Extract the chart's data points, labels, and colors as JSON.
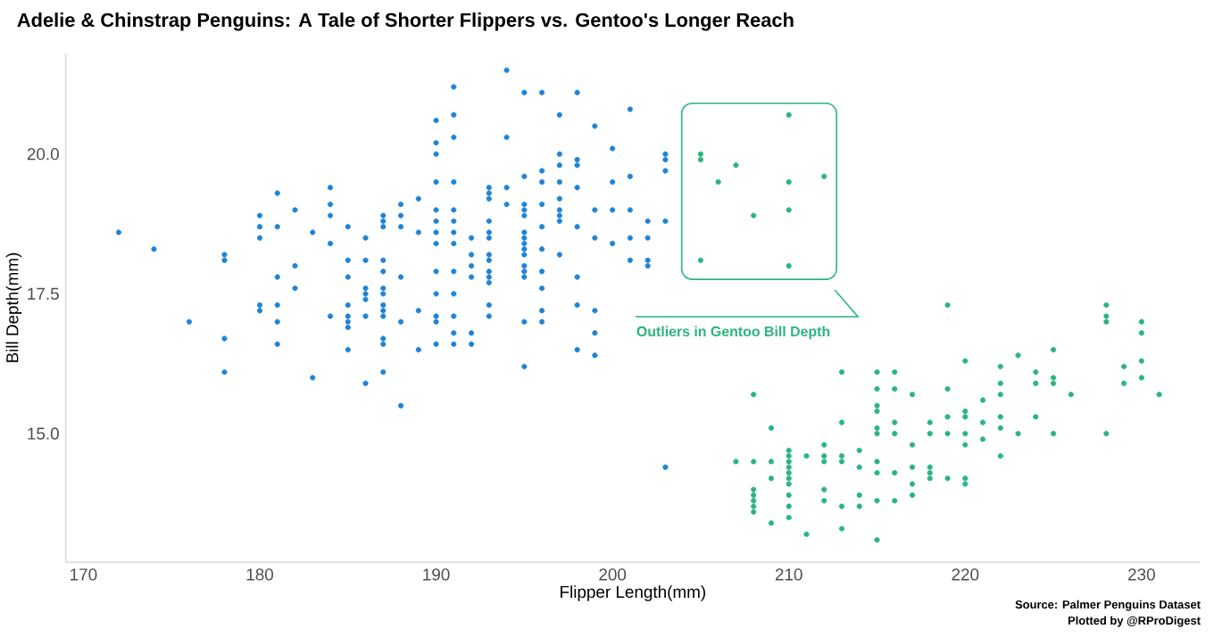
{
  "chart_data": {
    "type": "scatter",
    "title": "Adelie & Chinstrap Penguins: A Tale of Shorter Flippers vs. Gentoo's Longer Reach",
    "xlabel": "Flipper Length(mm)",
    "ylabel": "Bill Depth(mm)",
    "xlim": [
      169,
      233.3
    ],
    "ylim": [
      12.7,
      21.8
    ],
    "xticks": [
      170,
      180,
      190,
      200,
      210,
      220,
      230
    ],
    "yticks": [
      {
        "value": 15,
        "label": "15.0"
      },
      {
        "value": 17.5,
        "label": "17.5"
      },
      {
        "value": 20,
        "label": "20.0"
      }
    ],
    "marker": "circle",
    "annotations": [
      "Outliers in Gentoo Bill Depth",
      "Source: Palmer Penguins Dataset",
      "Plotted by @RProDigest"
    ],
    "series": [
      {
        "color": "#1f83d6",
        "x": [
          172,
          174,
          176,
          178,
          178,
          178,
          178,
          180,
          180,
          180,
          180,
          180,
          181,
          181,
          181,
          181,
          181,
          181,
          182,
          182,
          182,
          183,
          183,
          184,
          184,
          184,
          184,
          184,
          185,
          185,
          185,
          185,
          185,
          185,
          185,
          185,
          186,
          186,
          186,
          186,
          186,
          186,
          186,
          187,
          187,
          187,
          187,
          187,
          187,
          187,
          187,
          187,
          187,
          187,
          187,
          187,
          188,
          188,
          188,
          188,
          188,
          188,
          189,
          189,
          189,
          189,
          190,
          190,
          190,
          190,
          190,
          190,
          190,
          190,
          190,
          190,
          190,
          190,
          190,
          191,
          191,
          191,
          191,
          191,
          191,
          191,
          191,
          191,
          191,
          191,
          191,
          191,
          192,
          192,
          192,
          192,
          192,
          192,
          193,
          193,
          193,
          193,
          193,
          193,
          193,
          193,
          193,
          193,
          193,
          193,
          193,
          194,
          194,
          194,
          194,
          195,
          195,
          195,
          195,
          195,
          195,
          195,
          195,
          195,
          195,
          195,
          195,
          195,
          195,
          195,
          196,
          196,
          196,
          196,
          196,
          196,
          196,
          196,
          196,
          196,
          197,
          197,
          197,
          197,
          197,
          197,
          197,
          197,
          197,
          198,
          198,
          198,
          198,
          198,
          198,
          198,
          198,
          199,
          199,
          199,
          199,
          199,
          199,
          200,
          200,
          200,
          200,
          201,
          201,
          201,
          201,
          201,
          202,
          202,
          202,
          202,
          203,
          203,
          203,
          203,
          203
        ],
        "values": [
          18.6,
          18.3,
          17.0,
          18.2,
          18.1,
          16.7,
          16.1,
          18.9,
          18.7,
          18.5,
          17.3,
          17.2,
          19.3,
          18.7,
          17.8,
          17.3,
          17.0,
          16.6,
          19.0,
          18.0,
          17.6,
          18.6,
          16.0,
          19.4,
          19.1,
          18.9,
          18.4,
          17.1,
          18.7,
          18.1,
          17.8,
          17.3,
          17.1,
          17.0,
          16.9,
          16.5,
          18.5,
          18.1,
          17.6,
          17.5,
          17.4,
          17.1,
          15.9,
          18.9,
          18.8,
          18.7,
          18.1,
          17.9,
          17.6,
          17.5,
          17.3,
          17.2,
          17.1,
          16.7,
          16.6,
          16.1,
          19.1,
          18.9,
          18.7,
          17.8,
          17.0,
          15.5,
          19.2,
          18.6,
          17.2,
          16.5,
          20.6,
          20.2,
          20.0,
          19.5,
          19.0,
          18.8,
          18.6,
          18.4,
          17.9,
          17.5,
          17.1,
          17.0,
          16.6,
          21.2,
          20.7,
          20.3,
          19.5,
          19.0,
          18.8,
          18.6,
          18.4,
          17.9,
          17.5,
          17.1,
          16.8,
          16.6,
          18.5,
          18.2,
          18.0,
          17.8,
          16.8,
          16.6,
          19.4,
          19.3,
          19.2,
          18.8,
          18.6,
          18.5,
          18.2,
          18.1,
          17.9,
          17.8,
          17.7,
          17.3,
          17.1,
          21.5,
          20.3,
          19.4,
          19.1,
          21.1,
          19.6,
          19.1,
          19.0,
          18.9,
          18.6,
          18.5,
          18.4,
          18.3,
          18.2,
          18.0,
          17.9,
          17.8,
          17.0,
          16.2,
          21.1,
          19.7,
          19.5,
          19.1,
          18.7,
          18.3,
          17.9,
          17.6,
          17.2,
          17.0,
          20.7,
          20.0,
          19.8,
          19.5,
          19.2,
          19.0,
          18.9,
          18.8,
          18.2,
          21.1,
          19.9,
          19.8,
          19.4,
          18.7,
          17.8,
          17.3,
          16.5,
          20.5,
          19.0,
          18.5,
          17.2,
          16.8,
          16.4,
          20.1,
          19.5,
          19.0,
          18.4,
          20.8,
          19.6,
          19.0,
          18.5,
          18.1,
          18.8,
          18.5,
          18.1,
          18.0,
          20.0,
          19.9,
          19.7,
          18.8,
          14.4
        ]
      },
      {
        "color": "#2ab57d",
        "x": [
          205,
          205,
          205,
          206,
          207,
          207,
          208,
          208,
          208,
          208,
          208,
          208,
          208,
          208,
          209,
          209,
          209,
          209,
          210,
          210,
          210,
          210,
          210,
          210,
          210,
          210,
          210,
          210,
          210,
          210,
          210,
          210,
          211,
          211,
          212,
          212,
          212,
          212,
          212,
          212,
          213,
          213,
          213,
          213,
          213,
          213,
          214,
          214,
          214,
          214,
          215,
          215,
          215,
          215,
          215,
          215,
          215,
          215,
          215,
          215,
          216,
          216,
          216,
          216,
          216,
          216,
          217,
          217,
          217,
          217,
          217,
          218,
          218,
          218,
          218,
          218,
          219,
          219,
          219,
          219,
          219,
          220,
          220,
          220,
          220,
          220,
          220,
          220,
          221,
          221,
          221,
          222,
          222,
          222,
          222,
          222,
          222,
          223,
          223,
          224,
          224,
          224,
          225,
          225,
          225,
          225,
          226,
          228,
          228,
          228,
          228,
          229,
          229,
          230,
          230,
          230,
          230,
          231
        ],
        "values": [
          20.0,
          19.9,
          18.1,
          19.5,
          19.8,
          14.5,
          18.9,
          15.7,
          14.5,
          14.0,
          13.9,
          13.8,
          13.7,
          13.6,
          15.1,
          14.5,
          14.2,
          13.4,
          20.7,
          19.5,
          19.0,
          18.0,
          14.7,
          14.6,
          14.5,
          14.4,
          14.3,
          14.2,
          14.1,
          13.9,
          13.7,
          13.5,
          14.6,
          13.2,
          19.6,
          14.8,
          14.6,
          14.5,
          14.0,
          13.8,
          16.1,
          15.2,
          14.6,
          14.5,
          13.7,
          13.3,
          14.7,
          14.4,
          13.9,
          13.7,
          16.1,
          15.8,
          15.5,
          15.4,
          15.1,
          15.0,
          14.5,
          14.3,
          13.8,
          13.1,
          16.1,
          15.8,
          15.2,
          15.0,
          14.3,
          13.8,
          15.7,
          14.8,
          14.4,
          14.1,
          13.9,
          15.2,
          15.0,
          14.4,
          14.3,
          14.2,
          17.3,
          15.8,
          15.3,
          15.0,
          14.2,
          16.3,
          15.4,
          15.3,
          15.0,
          14.8,
          14.2,
          14.1,
          15.6,
          15.2,
          14.9,
          16.2,
          15.9,
          15.7,
          15.3,
          15.1,
          14.6,
          16.4,
          15.0,
          16.1,
          15.9,
          15.3,
          16.5,
          16.0,
          15.9,
          15.0,
          15.7,
          17.3,
          17.1,
          17.0,
          15.0,
          16.2,
          15.9,
          17.0,
          16.8,
          16.3,
          16.0,
          15.7
        ]
      }
    ]
  }
}
